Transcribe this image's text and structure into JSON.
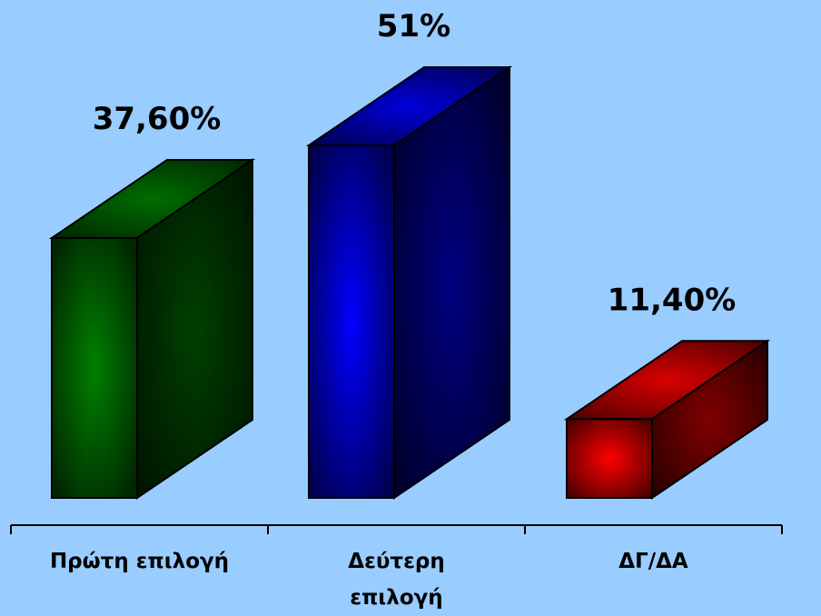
{
  "chart_data": {
    "type": "bar",
    "categories": [
      "Πρώτη επιλογή",
      "Δεύτερη επιλογή",
      "ΔΓ/ΔΑ"
    ],
    "category_lines": [
      [
        "Πρώτη επιλογή"
      ],
      [
        "Δεύτερη",
        "επιλογή"
      ],
      [
        "ΔΓ/ΔΑ"
      ]
    ],
    "values": [
      37.6,
      51,
      11.4
    ],
    "value_labels": [
      "37,60%",
      "51%",
      "11,40%"
    ],
    "ylim": [
      0,
      51
    ],
    "grid": false,
    "legend": "none",
    "colors": [
      "#008000",
      "#0000ff",
      "#ff0000"
    ],
    "background": "#99ccff"
  }
}
